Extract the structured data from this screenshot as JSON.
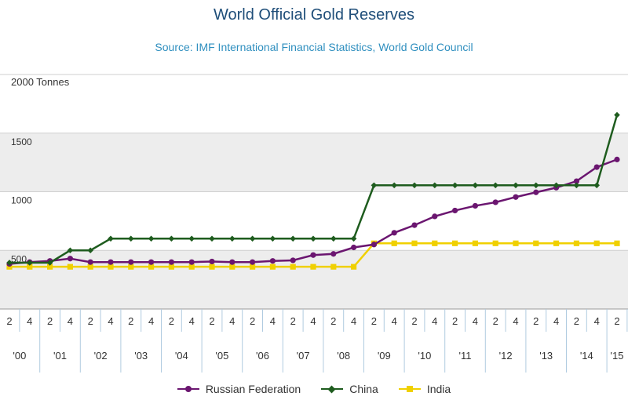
{
  "chart_data": {
    "type": "line",
    "title": "World Official Gold Reserves",
    "subtitle": "Source: IMF International Financial Statistics, World Gold Council",
    "ylabel": "2000 Tonnes",
    "ylim": [
      0,
      2000
    ],
    "yticks": [
      "1500",
      "1000",
      "500"
    ],
    "ytick_values": [
      1500,
      1000,
      500
    ],
    "x": [
      "2000Q2",
      "2000Q4",
      "2001Q2",
      "2001Q4",
      "2002Q2",
      "2002Q4",
      "2003Q2",
      "2003Q4",
      "2004Q2",
      "2004Q4",
      "2005Q2",
      "2005Q4",
      "2006Q2",
      "2006Q4",
      "2007Q2",
      "2007Q4",
      "2008Q2",
      "2008Q4",
      "2009Q2",
      "2009Q4",
      "2010Q2",
      "2010Q4",
      "2011Q2",
      "2011Q4",
      "2012Q2",
      "2012Q4",
      "2013Q2",
      "2013Q4",
      "2014Q2",
      "2014Q4",
      "2015Q2"
    ],
    "quarter_labels": [
      "2",
      "4",
      "2",
      "4",
      "2",
      "4",
      "2",
      "4",
      "2",
      "4",
      "2",
      "4",
      "2",
      "4",
      "2",
      "4",
      "2",
      "4",
      "2",
      "4",
      "2",
      "4",
      "2",
      "4",
      "2",
      "4",
      "2",
      "4",
      "2",
      "4",
      "2"
    ],
    "year_labels": [
      "'00",
      "'01",
      "'02",
      "'03",
      "'04",
      "'05",
      "'06",
      "'07",
      "'08",
      "'09",
      "'10",
      "'11",
      "'12",
      "'13",
      "'14",
      "'15"
    ],
    "grid": true,
    "legend_position": "bottom",
    "series": [
      {
        "name": "Russian Federation",
        "color": "#6b1670",
        "marker": "circle",
        "values": [
          385,
          400,
          410,
          430,
          400,
          400,
          400,
          400,
          400,
          400,
          405,
          400,
          400,
          410,
          415,
          460,
          470,
          525,
          550,
          650,
          715,
          790,
          840,
          880,
          910,
          955,
          995,
          1035,
          1090,
          1210,
          1275
        ]
      },
      {
        "name": "China",
        "color": "#1e5c1e",
        "marker": "diamond",
        "values": [
          395,
          395,
          395,
          500,
          500,
          600,
          600,
          600,
          600,
          600,
          600,
          600,
          600,
          600,
          600,
          600,
          600,
          600,
          1055,
          1055,
          1055,
          1055,
          1055,
          1055,
          1055,
          1055,
          1055,
          1055,
          1055,
          1055,
          1655
        ]
      },
      {
        "name": "India",
        "color": "#f0d000",
        "marker": "square",
        "values": [
          360,
          360,
          360,
          360,
          360,
          360,
          360,
          360,
          360,
          360,
          360,
          360,
          360,
          360,
          360,
          360,
          360,
          360,
          560,
          560,
          560,
          560,
          560,
          560,
          560,
          560,
          560,
          560,
          560,
          560,
          560
        ]
      }
    ]
  }
}
